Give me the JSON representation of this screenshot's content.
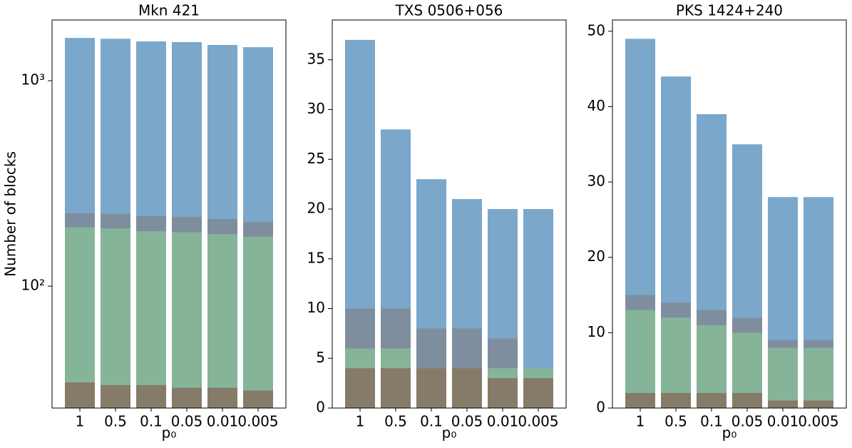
{
  "chart_data": [
    {
      "type": "bar",
      "title": "Mkn 421",
      "y_label": "Number of blocks",
      "x_label": "p₀",
      "log_scale": true,
      "categories": [
        "1",
        "0.5",
        "0.1",
        "0.05",
        "0.01",
        "0.005"
      ],
      "series": [
        {
          "color": "#7ba7cb",
          "values": [
            1615,
            1600,
            1553,
            1541,
            1493,
            1456
          ]
        },
        {
          "color": "#7f8e9e",
          "values": [
            226,
            225,
            219,
            217,
            212,
            205
          ]
        },
        {
          "color": "#86b499",
          "values": [
            193,
            191,
            185,
            183,
            179,
            174
          ]
        },
        {
          "color": "#857b68",
          "values": [
            34,
            33,
            33,
            32,
            32,
            31
          ]
        }
      ],
      "ylim": [
        25.5,
        1975
      ],
      "yticks": [
        {
          "value": 100,
          "label": "10²"
        },
        {
          "value": 1000,
          "label": "10³"
        }
      ]
    },
    {
      "type": "bar",
      "title": "TXS 0506+056",
      "x_label": "p₀",
      "log_scale": false,
      "categories": [
        "1",
        "0.5",
        "0.1",
        "0.05",
        "0.01",
        "0.005"
      ],
      "series": [
        {
          "color": "#7ba7cb",
          "values": [
            37,
            28,
            23,
            21,
            20,
            20
          ]
        },
        {
          "color": "#7f8e9e",
          "values": [
            10,
            10,
            8,
            8,
            7,
            4
          ]
        },
        {
          "color": "#86b499",
          "values": [
            6,
            6,
            4,
            4,
            4,
            4
          ]
        },
        {
          "color": "#857b68",
          "values": [
            4,
            4,
            4,
            4,
            3,
            3
          ]
        }
      ],
      "ylim": [
        0,
        39
      ],
      "yticks": [
        0,
        5,
        10,
        15,
        20,
        25,
        30,
        35
      ]
    },
    {
      "type": "bar",
      "title": "PKS 1424+240",
      "x_label": "p₀",
      "log_scale": false,
      "categories": [
        "1",
        "0.5",
        "0.1",
        "0.05",
        "0.01",
        "0.005"
      ],
      "series": [
        {
          "color": "#7ba7cb",
          "values": [
            49,
            44,
            39,
            35,
            28,
            28
          ]
        },
        {
          "color": "#7f8e9e",
          "values": [
            15,
            14,
            13,
            12,
            9,
            9
          ]
        },
        {
          "color": "#86b499",
          "values": [
            13,
            12,
            11,
            10,
            8,
            8
          ]
        },
        {
          "color": "#857b68",
          "values": [
            2,
            2,
            2,
            2,
            1,
            1
          ]
        }
      ],
      "ylim": [
        0,
        51.5
      ],
      "yticks": [
        0,
        10,
        20,
        30,
        40,
        50
      ]
    }
  ]
}
